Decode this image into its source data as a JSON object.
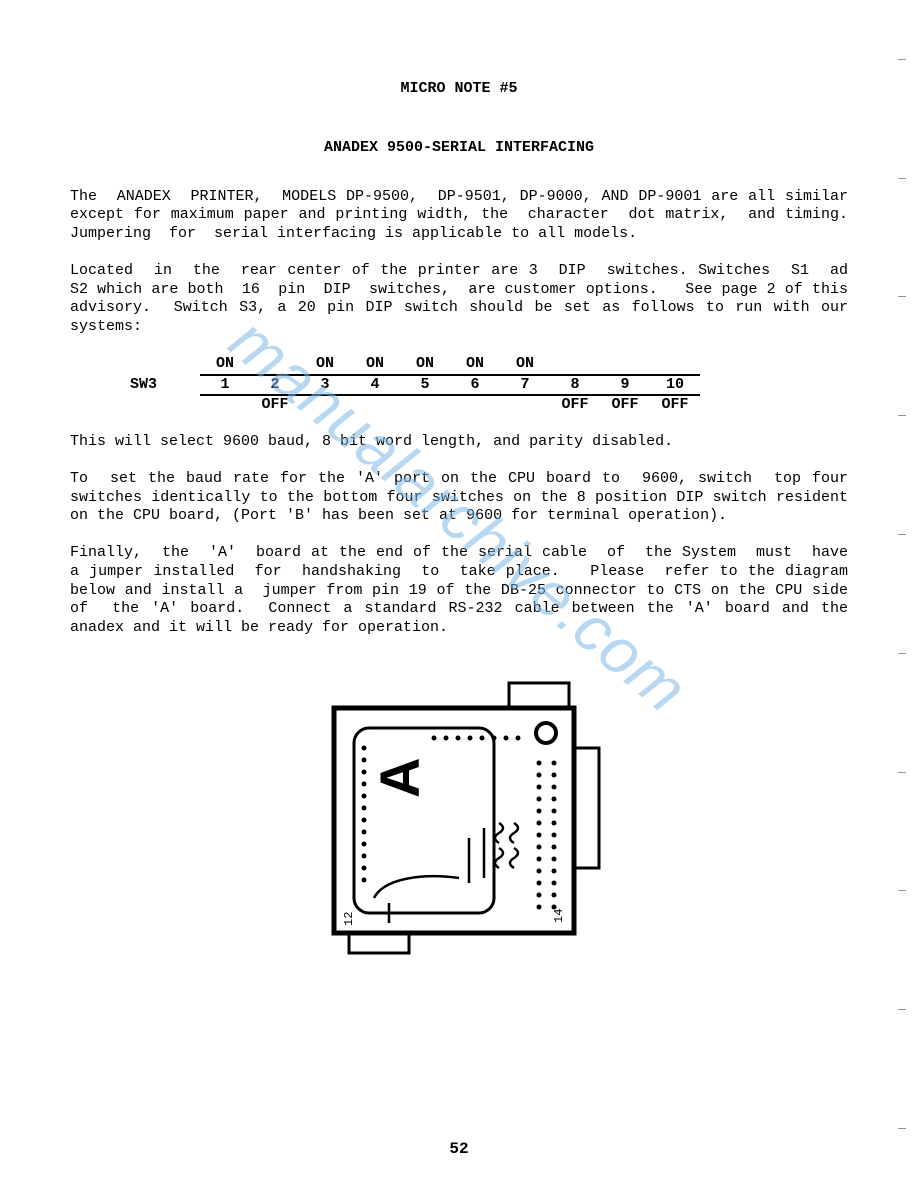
{
  "doc": {
    "title": "MICRO NOTE #5",
    "subtitle": "ANADEX 9500-SERIAL INTERFACING",
    "para1": "The  ANADEX  PRINTER,  MODELS DP-9500,  DP-9501, DP-9000, AND DP-9001 are all similar except for maximum paper and printing width, the  character  dot matrix,  and timing.   Jumpering  for  serial interfacing is applicable to all models.",
    "para2": "Located  in  the  rear center of the printer are 3  DIP  switches. Switches  S1  ad  S2 which are both  16  pin  DIP  switches,  are customer options.   See page 2 of this advisory.  Switch S3, a 20 pin DIP switch should be set as follows to run with our systems:",
    "para3": "This will select 9600 baud, 8 bit word length, and parity disabled.",
    "para4": "To  set the baud rate for the 'A' port on the CPU board to  9600, switch  top four switches identically to the bottom four switches on the 8 position DIP switch resident on the CPU board, (Port 'B' has been set at 9600 for terminal operation).",
    "para5": "Finally,  the  'A'  board at the end of the serial cable  of  the System  must  have  a jumper installed  for  handshaking  to  take place.   Please  refer to the diagram below and install a  jumper from pin 19 of the DB-25 connector to CTS on the CPU side of  the 'A' board.  Connect a standard RS-232 cable between the 'A' board and the anadex and it will be ready for operation.",
    "page_number": "52"
  },
  "switch_table": {
    "label": "SW3",
    "columns": [
      "1",
      "2",
      "3",
      "4",
      "5",
      "6",
      "7",
      "8",
      "9",
      "10"
    ],
    "top_row": [
      "ON",
      "",
      "ON",
      "ON",
      "ON",
      "ON",
      "ON",
      "",
      "",
      ""
    ],
    "bottom_row": [
      "",
      "OFF",
      "",
      "",
      "",
      "",
      "",
      "OFF",
      "OFF",
      "OFF"
    ]
  },
  "watermark": {
    "text": "manualarchive.com",
    "color": "#7fb8e6",
    "opacity": 0.55
  },
  "diagram": {
    "label": "A",
    "stroke": "#000000",
    "stroke_width": 3,
    "background": "#ffffff"
  },
  "colors": {
    "text": "#000000",
    "background": "#ffffff"
  }
}
